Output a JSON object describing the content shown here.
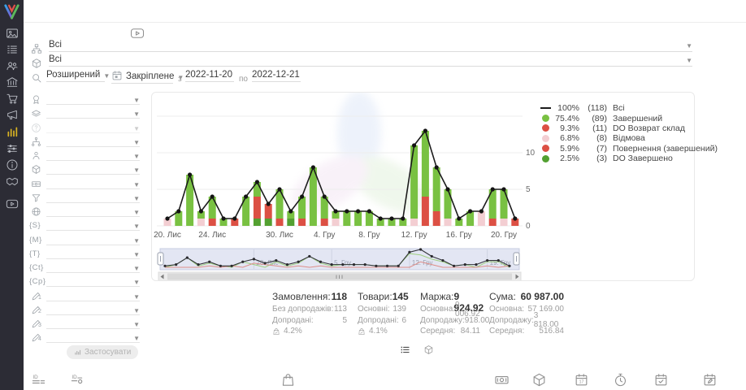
{
  "accent": "#d7b223",
  "sidebar": {
    "logo": "brand-logo",
    "items": [
      {
        "icon": "image-card-icon"
      },
      {
        "icon": "orders-list-icon"
      },
      {
        "icon": "users-icon"
      },
      {
        "icon": "bank-icon"
      },
      {
        "icon": "cart-icon"
      },
      {
        "icon": "megaphone-icon"
      },
      {
        "icon": "bar-chart-icon",
        "active": true
      },
      {
        "icon": "sliders-icon"
      },
      {
        "icon": "info-icon"
      },
      {
        "icon": "handshake-icon"
      },
      {
        "icon": "video-icon"
      }
    ]
  },
  "topbar": {
    "video_button_icon": "video-tutorial-icon"
  },
  "filters": {
    "source": {
      "icon": "sitemap-icon",
      "value": "Всі"
    },
    "product": {
      "icon": "package-icon",
      "value": "Всі"
    },
    "search_mode": {
      "icon": "search-icon",
      "value": "Розширений"
    },
    "period": {
      "icon": "calendar-icon",
      "value": "Закріплене",
      "from_label": "з",
      "from": "2022-11-20",
      "to_label": "по",
      "to": "2022-12-21"
    },
    "rows": [
      {
        "icon": "award-icon"
      },
      {
        "icon": "layers-icon"
      },
      {
        "icon": "help-icon",
        "disabled": true
      },
      {
        "icon": "hierarchy-icon"
      },
      {
        "icon": "person-pin-icon"
      },
      {
        "icon": "cube-icon"
      },
      {
        "icon": "banknote-icon"
      },
      {
        "icon": "funnel-icon"
      },
      {
        "icon": "globe-icon"
      },
      {
        "token": "{S}"
      },
      {
        "token": "{M}"
      },
      {
        "token": "{T}"
      },
      {
        "token": "{Ct}"
      },
      {
        "token": "{Cp}"
      },
      {
        "icon": "pencil-icon",
        "sub": "1"
      },
      {
        "icon": "pencil-icon",
        "sub": "2"
      },
      {
        "icon": "pencil-icon",
        "sub": "3"
      },
      {
        "icon": "pencil-icon",
        "sub": "4"
      }
    ],
    "apply_label": "Застосувати"
  },
  "chart_data": {
    "type": "bar",
    "stacked": true,
    "line_overlay": true,
    "categories": [
      "2022-11-20",
      "2022-11-21",
      "2022-11-22",
      "2022-11-23",
      "2022-11-24",
      "2022-11-25",
      "2022-11-26",
      "2022-11-27",
      "2022-11-28",
      "2022-11-29",
      "2022-11-30",
      "2022-12-01",
      "2022-12-02",
      "2022-12-03",
      "2022-12-04",
      "2022-12-05",
      "2022-12-06",
      "2022-12-07",
      "2022-12-08",
      "2022-12-09",
      "2022-12-10",
      "2022-12-11",
      "2022-12-12",
      "2022-12-13",
      "2022-12-14",
      "2022-12-15",
      "2022-12-16",
      "2022-12-17",
      "2022-12-18",
      "2022-12-19",
      "2022-12-20",
      "2022-12-21"
    ],
    "x_tick_labels": [
      {
        "day": 0,
        "label": "20. Лис"
      },
      {
        "day": 4,
        "label": "24. Лис"
      },
      {
        "day": 10,
        "label": "30. Лис"
      },
      {
        "day": 14,
        "label": "4. Гру"
      },
      {
        "day": 18,
        "label": "8. Гру"
      },
      {
        "day": 22,
        "label": "12. Гру"
      },
      {
        "day": 26,
        "label": "16. Гру"
      },
      {
        "day": 30,
        "label": "20. Гру"
      }
    ],
    "y_ticks": [
      0,
      5,
      10
    ],
    "ylim": [
      0,
      15.5
    ],
    "y_axis_side": "right",
    "line_series": {
      "name": "Всі",
      "color": "#1c1c1c",
      "values": [
        1,
        2,
        7,
        2,
        4,
        1,
        1,
        4,
        6,
        3,
        5,
        2,
        4,
        8,
        4,
        2,
        2,
        2,
        2,
        1,
        1,
        1,
        11,
        13,
        8,
        5,
        1,
        2,
        2,
        5,
        5,
        1
      ]
    },
    "bar_series": [
      {
        "name": "Відмова",
        "color": "#f3ced2",
        "values": [
          1,
          0,
          0,
          1,
          0,
          0,
          0,
          0,
          0,
          0,
          0,
          0,
          0,
          0,
          0,
          1,
          0,
          0,
          0,
          0,
          0,
          0,
          1,
          0,
          0,
          1,
          0,
          0,
          2,
          0,
          1,
          0
        ]
      },
      {
        "name": "DO Завершено",
        "color": "#53a031",
        "values": [
          0,
          0,
          0,
          0,
          0,
          0,
          0,
          0,
          1,
          1,
          0,
          1,
          0,
          0,
          0,
          0,
          0,
          0,
          0,
          0,
          0,
          0,
          0,
          0,
          0,
          0,
          0,
          0,
          0,
          0,
          0,
          0
        ]
      },
      {
        "name": "DO Возврат склад",
        "color": "#dc5044",
        "values": [
          0,
          0,
          0,
          0,
          1,
          0,
          1,
          0,
          0,
          2,
          1,
          0,
          1,
          0,
          1,
          0,
          0,
          0,
          0,
          0,
          0,
          0,
          0,
          2,
          1,
          0,
          0,
          0,
          0,
          0,
          0,
          1
        ]
      },
      {
        "name": "Повернення (завершений)",
        "color": "#dc5044",
        "values": [
          0,
          0,
          0,
          0,
          0,
          0,
          0,
          0,
          3,
          0,
          0,
          0,
          0,
          0,
          0,
          0,
          0,
          0,
          0,
          0,
          0,
          0,
          0,
          2,
          1,
          0,
          0,
          0,
          0,
          1,
          0,
          0
        ]
      },
      {
        "name": "Завершений",
        "color": "#79c142",
        "values": [
          0,
          2,
          7,
          1,
          3,
          1,
          0,
          4,
          2,
          0,
          4,
          1,
          3,
          8,
          3,
          1,
          2,
          2,
          2,
          1,
          1,
          1,
          10,
          9,
          6,
          4,
          1,
          2,
          0,
          4,
          4,
          0
        ]
      }
    ],
    "legend": [
      {
        "marker": "line",
        "color": "#1c1c1c",
        "pct": "100%",
        "count": "(118)",
        "label": "Всі"
      },
      {
        "marker": "dot",
        "color": "#79c142",
        "pct": "75.4%",
        "count": "(89)",
        "label": "Завершений"
      },
      {
        "marker": "dot",
        "color": "#dc5044",
        "pct": "9.3%",
        "count": "(11)",
        "label": "DO Возврат склад"
      },
      {
        "marker": "dot",
        "color": "#f3ced2",
        "pct": "6.8%",
        "count": "(8)",
        "label": "Відмова"
      },
      {
        "marker": "dot",
        "color": "#dc5044",
        "pct": "5.9%",
        "count": "(7)",
        "label": "Повернення (завершений)"
      },
      {
        "marker": "dot",
        "color": "#53a031",
        "pct": "2.5%",
        "count": "(3)",
        "label": "DO Завершено"
      }
    ],
    "navigator": {
      "labels": [
        {
          "day": 8,
          "label": "28. Лис"
        },
        {
          "day": 15,
          "label": "5. Гру"
        },
        {
          "day": 22,
          "label": "12. Гру"
        },
        {
          "day": 29,
          "label": "19. Гру"
        }
      ]
    }
  },
  "stats": {
    "columns": [
      {
        "title": "Замовлення:",
        "value": "118",
        "rows": [
          {
            "label": "Без допродажів:",
            "value": "113"
          },
          {
            "label": "Допродані:",
            "value": "5"
          },
          {
            "icon": "bag-percent-icon",
            "value": "4.2%"
          }
        ]
      },
      {
        "title": "Товари:",
        "value": "145",
        "rows": [
          {
            "label": "Основні:",
            "value": "139"
          },
          {
            "label": "Допродані:",
            "value": "6"
          },
          {
            "icon": "bag-percent-icon",
            "value": "4.1%"
          }
        ]
      },
      {
        "title": "Маржа:",
        "value": "9 924.92",
        "rows": [
          {
            "label": "Основна:",
            "value": "9 006.92"
          },
          {
            "label": "Допродажу:",
            "value": "918.00"
          },
          {
            "label": "Середня:",
            "value": "84.11"
          }
        ]
      },
      {
        "title": "Сума:",
        "value": "60 987.00",
        "rows": [
          {
            "label": "Основна:",
            "value": "57 169.00"
          },
          {
            "label": "Допродажу:",
            "value": "3 818.00"
          },
          {
            "label": "Середня:",
            "value": "516.84"
          }
        ]
      }
    ]
  },
  "view_toggles": [
    {
      "icon": "table-list-icon",
      "color": "#4d4d4d"
    },
    {
      "icon": "cube-outline-icon",
      "color": "#979797"
    }
  ],
  "bottom_icons": [
    {
      "icon": "id-list-icon"
    },
    {
      "icon": "id-circle-icon"
    },
    {
      "icon": "bag-icon"
    },
    {
      "icon": "banknote-icon"
    },
    {
      "icon": "cube-icon"
    },
    {
      "icon": "calendar-date-icon"
    },
    {
      "icon": "stopwatch-icon"
    },
    {
      "icon": "calendar-check-icon"
    },
    {
      "icon": "calendar-edit-icon"
    }
  ]
}
